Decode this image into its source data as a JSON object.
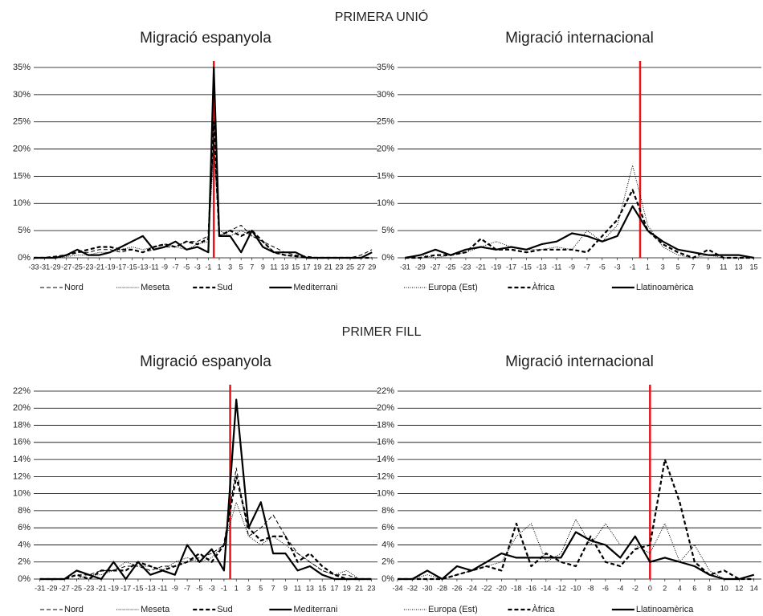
{
  "headings": [
    "PRIMERA UNIÓ",
    "PRIMER FILL"
  ],
  "chart_data": [
    {
      "type": "line",
      "title": "Migració espanyola",
      "x": [
        -33,
        -31,
        -29,
        -27,
        -25,
        -23,
        -21,
        -19,
        -17,
        -15,
        -13,
        -11,
        -9,
        -7,
        -5,
        -3,
        -1,
        0,
        1,
        3,
        5,
        7,
        9,
        11,
        13,
        15,
        17,
        19,
        21,
        23,
        25,
        27,
        29
      ],
      "xlim": [
        -33,
        30
      ],
      "xticks": [
        -33,
        -31,
        -29,
        -27,
        -25,
        -23,
        -21,
        -19,
        -17,
        -15,
        -13,
        -11,
        -9,
        -7,
        -5,
        -3,
        -1,
        1,
        3,
        5,
        7,
        9,
        11,
        13,
        15,
        17,
        19,
        21,
        23,
        25,
        27,
        29
      ],
      "ylim": [
        0,
        35
      ],
      "yticks": [
        {
          "value": 0,
          "label": "0%"
        },
        {
          "value": 5,
          "label": "5%"
        },
        {
          "value": 10,
          "label": "10%"
        },
        {
          "value": 15,
          "label": "15%"
        },
        {
          "value": 20,
          "label": "20%"
        },
        {
          "value": 25,
          "label": "25%"
        },
        {
          "value": 30,
          "label": "30%"
        },
        {
          "value": 35,
          "label": "35%"
        }
      ],
      "grid": true,
      "reference_line": {
        "x": 0,
        "color": "#e8131b"
      },
      "series": [
        {
          "name": "Nord",
          "color": "#000000",
          "dash": "dashed-thin",
          "values": [
            0,
            0,
            0.3,
            0.5,
            1,
            1,
            1.5,
            1.5,
            1,
            1.5,
            1,
            1.5,
            2,
            2,
            3,
            3,
            4,
            22,
            4,
            5,
            6,
            4,
            3,
            2,
            1,
            0.5,
            0.3,
            0,
            0,
            0,
            0,
            0.5,
            1.5
          ]
        },
        {
          "name": "Meseta",
          "color": "#000000",
          "dash": "dotted-thin",
          "values": [
            0,
            0,
            0,
            0.2,
            0.5,
            0.5,
            1,
            1,
            1.5,
            2,
            1.5,
            2,
            2.5,
            2,
            1.5,
            2.5,
            3,
            20,
            5,
            4,
            5,
            4,
            3,
            1,
            0.5,
            0.3,
            0,
            0,
            0,
            0,
            0,
            0,
            0
          ]
        },
        {
          "name": "Sud",
          "color": "#000000",
          "dash": "dashed-bold",
          "values": [
            0,
            0,
            0.2,
            0.5,
            1,
            1.5,
            2,
            2,
            1.5,
            1.5,
            1,
            2,
            2.5,
            2,
            3,
            2.5,
            3.5,
            25,
            4,
            5,
            4,
            5,
            3,
            1,
            0.5,
            0.3,
            0,
            0,
            0,
            0,
            0,
            0,
            0
          ]
        },
        {
          "name": "Mediterrani",
          "color": "#000000",
          "dash": "solid-bold",
          "values": [
            0,
            0,
            0,
            0.5,
            1.5,
            0.5,
            0.5,
            1,
            2,
            3,
            4,
            1.5,
            2,
            3,
            1.5,
            2,
            1,
            35,
            4,
            4,
            1,
            5,
            2,
            1,
            1,
            1,
            0,
            0,
            0,
            0,
            0,
            0,
            1
          ]
        }
      ]
    },
    {
      "type": "line",
      "title": "Migració internacional",
      "x": [
        -31,
        -29,
        -27,
        -25,
        -23,
        -21,
        -19,
        -17,
        -15,
        -13,
        -11,
        -9,
        -7,
        -5,
        -3,
        -1,
        1,
        3,
        5,
        7,
        9,
        11,
        13,
        15
      ],
      "xlim": [
        -32,
        16
      ],
      "xticks": [
        -31,
        -29,
        -27,
        -25,
        -23,
        -21,
        -19,
        -17,
        -15,
        -13,
        -11,
        -9,
        -7,
        -5,
        -3,
        -1,
        1,
        3,
        5,
        7,
        9,
        11,
        13,
        15
      ],
      "ylim": [
        0,
        35
      ],
      "yticks": [
        {
          "value": 0,
          "label": "0%"
        },
        {
          "value": 5,
          "label": "5%"
        },
        {
          "value": 10,
          "label": "10%"
        },
        {
          "value": 15,
          "label": "15%"
        },
        {
          "value": 20,
          "label": "20%"
        },
        {
          "value": 25,
          "label": "25%"
        },
        {
          "value": 30,
          "label": "30%"
        },
        {
          "value": 35,
          "label": "35%"
        }
      ],
      "grid": true,
      "reference_line": {
        "x": 0,
        "color": "#e8131b"
      },
      "series": [
        {
          "name": "Europa (Est)",
          "color": "#000000",
          "dash": "dotted-thin",
          "values": [
            0,
            0.5,
            0,
            0.5,
            1,
            2,
            3,
            2,
            1.5,
            1.5,
            2,
            1.5,
            5,
            3,
            6,
            17,
            6,
            2,
            0.5,
            0,
            0.5,
            0,
            0,
            0
          ]
        },
        {
          "name": "Àfrica",
          "color": "#000000",
          "dash": "dashed-bold",
          "values": [
            0,
            0,
            0.5,
            0.5,
            1,
            3.5,
            1.5,
            1.5,
            1,
            1.5,
            1.5,
            1.5,
            1,
            4,
            7,
            12.5,
            5,
            2.5,
            1,
            0,
            1.5,
            0,
            0,
            0
          ]
        },
        {
          "name": "Llatinoamèrica",
          "color": "#000000",
          "dash": "solid-bold",
          "values": [
            0,
            0.5,
            1.5,
            0.5,
            1.5,
            2,
            1.5,
            2,
            1.5,
            2.5,
            3,
            4.5,
            4,
            3,
            4,
            9.5,
            5,
            3,
            1.5,
            1,
            0.5,
            0.5,
            0.5,
            0
          ]
        }
      ]
    },
    {
      "type": "line",
      "title": "Migració espanyola",
      "x": [
        -31,
        -29,
        -27,
        -25,
        -23,
        -21,
        -19,
        -17,
        -15,
        -13,
        -11,
        -9,
        -7,
        -5,
        -3,
        -1,
        1,
        3,
        5,
        7,
        9,
        11,
        13,
        15,
        17,
        19,
        21,
        23
      ],
      "xlim": [
        -32,
        24
      ],
      "xticks": [
        -31,
        -29,
        -27,
        -25,
        -23,
        -21,
        -19,
        -17,
        -15,
        -13,
        -11,
        -9,
        -7,
        -5,
        -3,
        -1,
        1,
        3,
        5,
        7,
        9,
        11,
        13,
        15,
        17,
        19,
        21,
        23
      ],
      "ylim": [
        0,
        22
      ],
      "yticks": [
        {
          "value": 0,
          "label": "0%"
        },
        {
          "value": 2,
          "label": "2%"
        },
        {
          "value": 4,
          "label": "4%"
        },
        {
          "value": 6,
          "label": "6%"
        },
        {
          "value": 8,
          "label": "8%"
        },
        {
          "value": 10,
          "label": "10%"
        },
        {
          "value": 12,
          "label": "12%"
        },
        {
          "value": 14,
          "label": "14%"
        },
        {
          "value": 16,
          "label": "16%"
        },
        {
          "value": 18,
          "label": "18%"
        },
        {
          "value": 20,
          "label": "20%"
        },
        {
          "value": 22,
          "label": "22%"
        }
      ],
      "grid": true,
      "reference_line": {
        "x": 0,
        "color": "#e8131b"
      },
      "series": [
        {
          "name": "Nord",
          "color": "#000000",
          "dash": "dashed-thin",
          "values": [
            0,
            0,
            0,
            0.5,
            0.5,
            1,
            1,
            1.5,
            1.5,
            1,
            1.5,
            1.5,
            2,
            2.5,
            3,
            4,
            13,
            5,
            6,
            7.5,
            5,
            3,
            2,
            1,
            0.5,
            0.5,
            0,
            0
          ]
        },
        {
          "name": "Meseta",
          "color": "#000000",
          "dash": "dotted-thin",
          "values": [
            0,
            0,
            0,
            0,
            0.5,
            0.5,
            1,
            2,
            1.5,
            1.5,
            1,
            2,
            2.5,
            2,
            2.5,
            4,
            9,
            5,
            4,
            5,
            4,
            3,
            2,
            1,
            0.5,
            1,
            0,
            0
          ]
        },
        {
          "name": "Sud",
          "color": "#000000",
          "dash": "dashed-bold",
          "values": [
            0,
            0,
            0,
            0.5,
            0,
            1,
            1,
            1,
            2,
            1.5,
            1,
            1.5,
            2,
            3,
            2,
            4,
            12,
            6,
            4.5,
            5,
            5,
            2,
            3,
            1.5,
            0.5,
            0,
            0,
            0
          ]
        },
        {
          "name": "Mediterrani",
          "color": "#000000",
          "dash": "solid-bold",
          "values": [
            0,
            0,
            0,
            1,
            0.5,
            0,
            2,
            0,
            2,
            0.5,
            1,
            0.5,
            4,
            2,
            3.5,
            1,
            21,
            6,
            9,
            3,
            3,
            1,
            1.5,
            0.5,
            0,
            0,
            0,
            0
          ]
        }
      ]
    },
    {
      "type": "line",
      "title": "Migració internacional",
      "x": [
        -34,
        -32,
        -30,
        -28,
        -26,
        -24,
        -22,
        -20,
        -18,
        -16,
        -14,
        -12,
        -10,
        -8,
        -6,
        -4,
        -2,
        0,
        2,
        4,
        6,
        8,
        10,
        12,
        14
      ],
      "xlim": [
        -34,
        15
      ],
      "xticks": [
        -34,
        -32,
        -30,
        -28,
        -26,
        -24,
        -22,
        -20,
        -18,
        -16,
        -14,
        -12,
        -10,
        -8,
        -6,
        -4,
        -2,
        0,
        2,
        4,
        6,
        8,
        10,
        12,
        14
      ],
      "ylim": [
        0,
        22
      ],
      "yticks": [
        {
          "value": 0,
          "label": "0%"
        },
        {
          "value": 2,
          "label": "2%"
        },
        {
          "value": 4,
          "label": "4%"
        },
        {
          "value": 6,
          "label": "6%"
        },
        {
          "value": 8,
          "label": "8%"
        },
        {
          "value": 10,
          "label": "10%"
        },
        {
          "value": 12,
          "label": "12%"
        },
        {
          "value": 14,
          "label": "14%"
        },
        {
          "value": 16,
          "label": "16%"
        },
        {
          "value": 18,
          "label": "18%"
        },
        {
          "value": 20,
          "label": "20%"
        },
        {
          "value": 22,
          "label": "22%"
        }
      ],
      "grid": true,
      "reference_line": {
        "x": 0,
        "color": "#e8131b"
      },
      "series": [
        {
          "name": "Europa (Est)",
          "color": "#000000",
          "dash": "dotted-thin",
          "values": [
            0,
            0,
            0.5,
            0,
            0.5,
            1,
            1.5,
            2,
            5,
            6.5,
            2,
            3,
            7,
            4,
            6.5,
            4,
            4,
            3,
            6.5,
            2,
            4,
            1,
            0,
            0,
            0
          ]
        },
        {
          "name": "Àfrica",
          "color": "#000000",
          "dash": "dashed-bold",
          "values": [
            0,
            0,
            0,
            0,
            0.5,
            1,
            1.5,
            1,
            6.5,
            1.5,
            3,
            2,
            1.5,
            5,
            2,
            1.5,
            3.5,
            4,
            14,
            9,
            2,
            0.5,
            1,
            0,
            0
          ]
        },
        {
          "name": "Llatinoamèrica",
          "color": "#000000",
          "dash": "solid-bold",
          "values": [
            0,
            0,
            1,
            0,
            1.5,
            1,
            2,
            3,
            2.5,
            2.5,
            2.5,
            2.5,
            5.5,
            4.5,
            4,
            2.5,
            5,
            2,
            2.5,
            2,
            1.5,
            0.5,
            0,
            0,
            0.5
          ]
        }
      ]
    }
  ]
}
